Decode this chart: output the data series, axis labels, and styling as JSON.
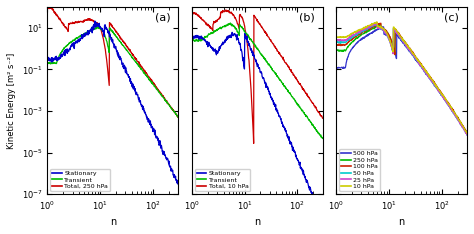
{
  "panels": [
    "(a)",
    "(b)",
    "(c)"
  ],
  "xlabel": "n",
  "ylabel": "Kinetic Energy [m² s⁻²]",
  "xlim": [
    1,
    300
  ],
  "ylim": [
    1e-07,
    100.0
  ],
  "background_color": "#ffffff",
  "legend_a": {
    "labels": [
      "Stationary",
      "Transient",
      "Total, 250 hPa"
    ],
    "colors": [
      "#0000cc",
      "#00bb00",
      "#cc0000"
    ]
  },
  "legend_b": {
    "labels": [
      "Stationary",
      "Transient",
      "Total, 10 hPa"
    ],
    "colors": [
      "#0000cc",
      "#00bb00",
      "#cc0000"
    ]
  },
  "legend_c": {
    "labels": [
      "500 hPa",
      "250 hPa",
      "100 hPa",
      "50 hPa",
      "25 hPa",
      "10 hPa"
    ],
    "colors": [
      "#3333cc",
      "#00bb00",
      "#cc2200",
      "#00cccc",
      "#cc44cc",
      "#cccc00"
    ]
  }
}
